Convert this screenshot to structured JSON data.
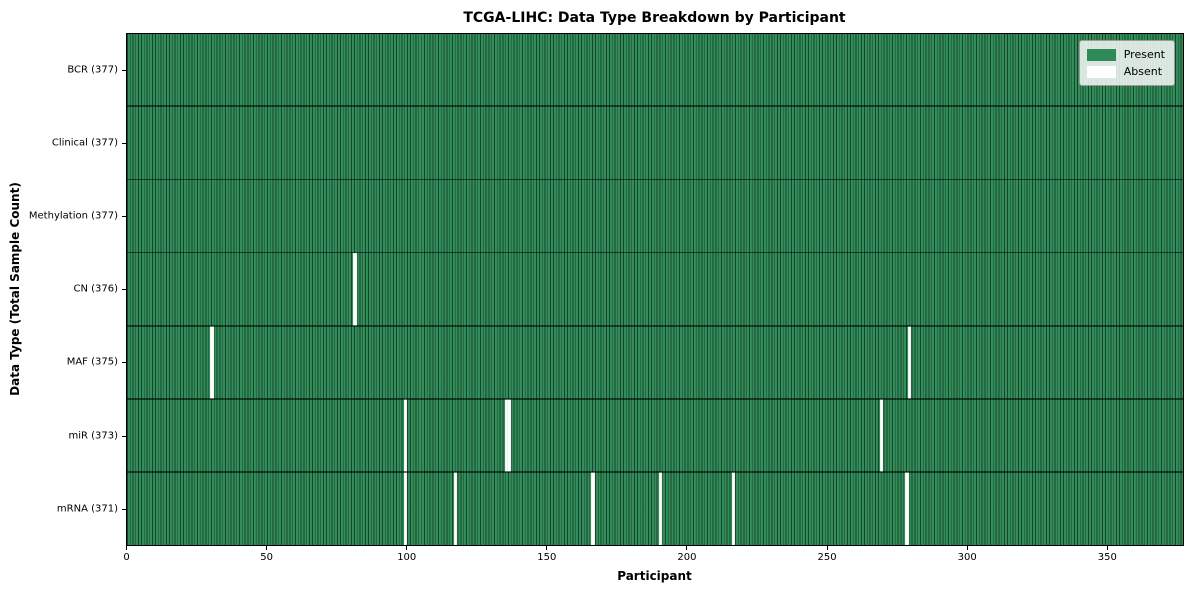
{
  "title": "TCGA-LIHC: Data Type Breakdown by Participant",
  "chart_data": {
    "type": "heatmap",
    "title": "TCGA-LIHC: Data Type Breakdown by Participant",
    "xlabel": "Participant",
    "ylabel": "Data Type (Total Sample Count)",
    "n_participants": 377,
    "xlim": [
      0,
      377
    ],
    "x_ticks": [
      0,
      50,
      100,
      150,
      200,
      250,
      300,
      350
    ],
    "grid": false,
    "legend_position": "upper right",
    "cell_states": {
      "present_value": 1,
      "absent_value": 0
    },
    "rows": [
      {
        "data_type": "BCR",
        "label": "BCR (377)",
        "total_samples": 377,
        "absent_participants": []
      },
      {
        "data_type": "Clinical",
        "label": "Clinical (377)",
        "total_samples": 377,
        "absent_participants": []
      },
      {
        "data_type": "Methylation",
        "label": "Methylation (377)",
        "total_samples": 377,
        "absent_participants": []
      },
      {
        "data_type": "CN",
        "label": "CN (376)",
        "total_samples": 376,
        "absent_participants": [
          81
        ]
      },
      {
        "data_type": "MAF",
        "label": "MAF (375)",
        "total_samples": 375,
        "absent_participants": [
          30,
          279
        ]
      },
      {
        "data_type": "miR",
        "label": "miR (373)",
        "total_samples": 373,
        "absent_participants": [
          99,
          135,
          136,
          269
        ]
      },
      {
        "data_type": "mRNA",
        "label": "mRNA (371)",
        "total_samples": 371,
        "absent_participants": [
          99,
          117,
          166,
          190,
          216,
          278
        ]
      }
    ],
    "legend": [
      {
        "label": "Present",
        "color": "#2e8b57"
      },
      {
        "label": "Absent",
        "color": "#ffffff"
      }
    ]
  }
}
